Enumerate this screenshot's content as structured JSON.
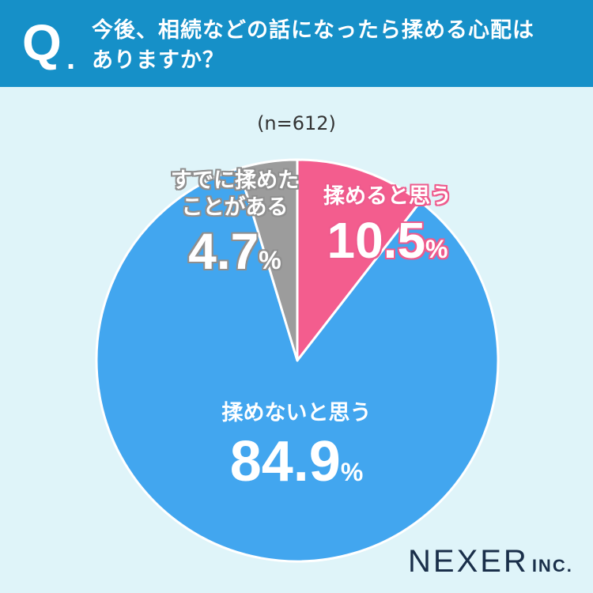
{
  "header": {
    "q_mark": "Q",
    "q_dot": ".",
    "question_line1": "今後、相続などの話になったら揉める心配は",
    "question_line2": "ありますか？"
  },
  "sample_size": "(n=612)",
  "colors": {
    "header": "#1690c8",
    "background": "#dff4f9",
    "pink": "#f35d8e",
    "blue": "#42a6ef",
    "gray": "#9c9c9c"
  },
  "chart_data": {
    "type": "pie",
    "title": "今後、相続などの話になったら揉める心配はありますか？",
    "slices": [
      {
        "label": "揉めると思う",
        "value": 10.5,
        "color": "#f35d8e"
      },
      {
        "label": "揉めないと思う",
        "value": 84.9,
        "color": "#42a6ef"
      },
      {
        "label": "すでに揉めたことがある",
        "value": 4.7,
        "color": "#9c9c9c"
      }
    ],
    "start_angle": "12 o'clock",
    "direction": "clockwise"
  },
  "labels": {
    "pink_name": "揉めると思う",
    "pink_value": "10.5",
    "blue_name": "揉めないと思う",
    "blue_value": "84.9",
    "gray_name_line1": "すでに揉めた",
    "gray_name_line2": "ことがある",
    "gray_value": "4.7",
    "percent": "%"
  },
  "logo": {
    "main": "NEXER",
    "suffix": "INC."
  }
}
